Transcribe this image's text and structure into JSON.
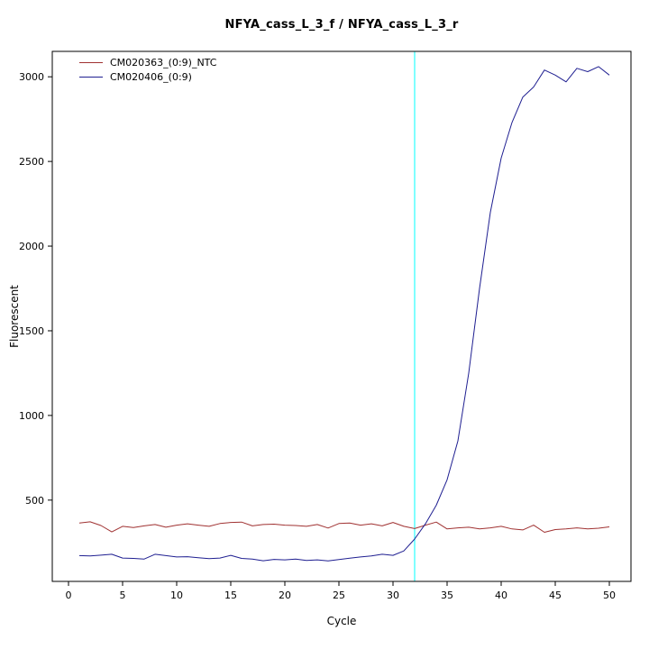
{
  "chart_data": {
    "type": "line",
    "title": "NFYA_cass_L_3_f / NFYA_cass_L_3_r",
    "xlabel": "Cycle",
    "ylabel": "Fluorescent",
    "x": [
      1,
      2,
      3,
      4,
      5,
      6,
      7,
      8,
      9,
      10,
      11,
      12,
      13,
      14,
      15,
      16,
      17,
      18,
      19,
      20,
      21,
      22,
      23,
      24,
      25,
      26,
      27,
      28,
      29,
      30,
      31,
      32,
      33,
      34,
      35,
      36,
      37,
      38,
      39,
      40,
      41,
      42,
      43,
      44,
      45,
      46,
      47,
      48,
      49,
      50
    ],
    "series": [
      {
        "name": "CM020363_(0:9)_NTC",
        "color": "#a03232",
        "values": [
          365,
          372,
          350,
          312,
          345,
          338,
          348,
          356,
          340,
          352,
          360,
          352,
          345,
          362,
          368,
          370,
          348,
          356,
          358,
          352,
          350,
          345,
          356,
          335,
          362,
          365,
          352,
          360,
          348,
          368,
          345,
          332,
          352,
          370,
          330,
          336,
          340,
          330,
          336,
          345,
          330,
          324,
          352,
          310,
          326,
          330,
          336,
          330,
          334,
          342
        ]
      },
      {
        "name": "CM020406_(0:9)",
        "color": "#1f1f91",
        "values": [
          172,
          170,
          175,
          180,
          158,
          156,
          152,
          180,
          172,
          164,
          166,
          160,
          154,
          158,
          174,
          156,
          152,
          142,
          150,
          147,
          152,
          144,
          147,
          141,
          149,
          157,
          164,
          170,
          180,
          174,
          200,
          270,
          360,
          470,
          620,
          850,
          1250,
          1750,
          2200,
          2520,
          2730,
          2880,
          2940,
          3040,
          3010,
          2970,
          3050,
          3030,
          3060,
          3010
        ]
      }
    ],
    "threshold_line": {
      "x": 32,
      "color": "#00ffff"
    },
    "xticks": [
      0,
      5,
      10,
      15,
      20,
      25,
      30,
      35,
      40,
      45,
      50
    ],
    "yticks": [
      500,
      1000,
      1500,
      2000,
      2500,
      3000
    ],
    "xlim": [
      -1.5,
      52
    ],
    "ylim": [
      20,
      3150
    ],
    "legend_position": "top-left",
    "grid": false,
    "axis_color": "#000000",
    "background": "#ffffff"
  }
}
